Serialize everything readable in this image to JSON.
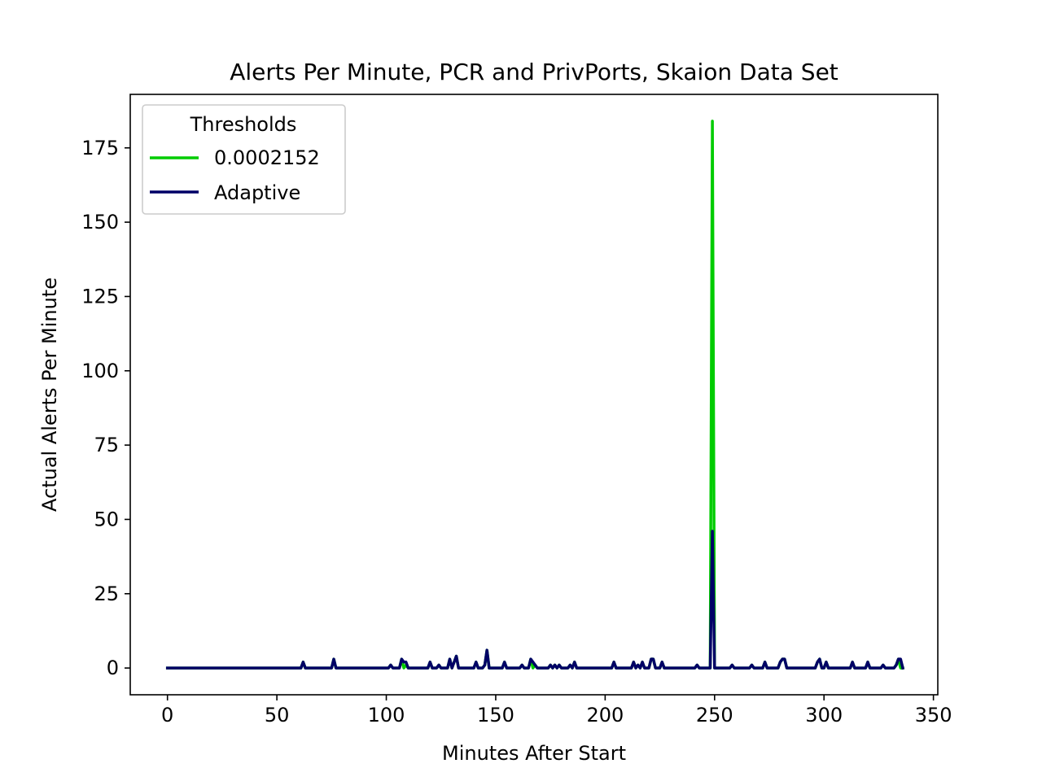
{
  "chart_data": {
    "type": "line",
    "title": "Alerts Per Minute, PCR and PrivPorts, Skaion Data Set",
    "xlabel": "Minutes After Start",
    "ylabel": "Actual Alerts Per Minute",
    "xlim": [
      -17,
      352
    ],
    "ylim": [
      -9,
      193
    ],
    "xticks": [
      0,
      50,
      100,
      150,
      200,
      250,
      300,
      350
    ],
    "yticks": [
      0,
      25,
      50,
      75,
      100,
      125,
      150,
      175
    ],
    "legend": {
      "title": "Thresholds",
      "position": "top-left"
    },
    "grid": false,
    "series": [
      {
        "name": "0.0002152",
        "color": "#00cc00",
        "points": [
          [
            0,
            0
          ],
          [
            61,
            0
          ],
          [
            62,
            2
          ],
          [
            63,
            0
          ],
          [
            75,
            0
          ],
          [
            76,
            3
          ],
          [
            77,
            0
          ],
          [
            101,
            0
          ],
          [
            102,
            1
          ],
          [
            103,
            0
          ],
          [
            106,
            0
          ],
          [
            107,
            3
          ],
          [
            108,
            0
          ],
          [
            109,
            1
          ],
          [
            110,
            0
          ],
          [
            119,
            0
          ],
          [
            120,
            2
          ],
          [
            121,
            0
          ],
          [
            123,
            0
          ],
          [
            124,
            1
          ],
          [
            125,
            0
          ],
          [
            128,
            0
          ],
          [
            129,
            3
          ],
          [
            130,
            0
          ],
          [
            131,
            2
          ],
          [
            132,
            4
          ],
          [
            133,
            0
          ],
          [
            140,
            0
          ],
          [
            141,
            2
          ],
          [
            142,
            0
          ],
          [
            144,
            0
          ],
          [
            145,
            1
          ],
          [
            146,
            6
          ],
          [
            147,
            0
          ],
          [
            153,
            0
          ],
          [
            154,
            2
          ],
          [
            155,
            0
          ],
          [
            161,
            0
          ],
          [
            162,
            1
          ],
          [
            163,
            0
          ],
          [
            165,
            0
          ],
          [
            166,
            3
          ],
          [
            167,
            0
          ],
          [
            168,
            1
          ],
          [
            169,
            0
          ],
          [
            174,
            0
          ],
          [
            175,
            1
          ],
          [
            176,
            0
          ],
          [
            177,
            1
          ],
          [
            178,
            0
          ],
          [
            179,
            1
          ],
          [
            180,
            0
          ],
          [
            183,
            0
          ],
          [
            184,
            1
          ],
          [
            185,
            0
          ],
          [
            186,
            2
          ],
          [
            187,
            0
          ],
          [
            203,
            0
          ],
          [
            204,
            2
          ],
          [
            205,
            0
          ],
          [
            212,
            0
          ],
          [
            213,
            2
          ],
          [
            214,
            0
          ],
          [
            215,
            1
          ],
          [
            216,
            0
          ],
          [
            217,
            2
          ],
          [
            218,
            0
          ],
          [
            220,
            0
          ],
          [
            221,
            3
          ],
          [
            222,
            3
          ],
          [
            223,
            0
          ],
          [
            225,
            0
          ],
          [
            226,
            2
          ],
          [
            227,
            0
          ],
          [
            241,
            0
          ],
          [
            242,
            1
          ],
          [
            243,
            0
          ],
          [
            248,
            0
          ],
          [
            249,
            184
          ],
          [
            250,
            0
          ],
          [
            257,
            0
          ],
          [
            258,
            1
          ],
          [
            259,
            0
          ],
          [
            266,
            0
          ],
          [
            267,
            1
          ],
          [
            268,
            0
          ],
          [
            272,
            0
          ],
          [
            273,
            2
          ],
          [
            274,
            0
          ],
          [
            279,
            0
          ],
          [
            280,
            2
          ],
          [
            281,
            3
          ],
          [
            282,
            3
          ],
          [
            283,
            0
          ],
          [
            296,
            0
          ],
          [
            297,
            2
          ],
          [
            298,
            3
          ],
          [
            299,
            0
          ],
          [
            300,
            0
          ],
          [
            301,
            2
          ],
          [
            302,
            0
          ],
          [
            312,
            0
          ],
          [
            313,
            2
          ],
          [
            314,
            0
          ],
          [
            319,
            0
          ],
          [
            320,
            2
          ],
          [
            321,
            0
          ],
          [
            326,
            0
          ],
          [
            327,
            1
          ],
          [
            328,
            0
          ],
          [
            332,
            0
          ],
          [
            333,
            1
          ],
          [
            334,
            3
          ],
          [
            335,
            0
          ],
          [
            336,
            0
          ]
        ]
      },
      {
        "name": "Adaptive",
        "color": "#000066",
        "points": [
          [
            0,
            0
          ],
          [
            61,
            0
          ],
          [
            62,
            2
          ],
          [
            63,
            0
          ],
          [
            75,
            0
          ],
          [
            76,
            3
          ],
          [
            77,
            0
          ],
          [
            101,
            0
          ],
          [
            102,
            1
          ],
          [
            103,
            0
          ],
          [
            106,
            0
          ],
          [
            107,
            3
          ],
          [
            108,
            2
          ],
          [
            109,
            2
          ],
          [
            110,
            0
          ],
          [
            119,
            0
          ],
          [
            120,
            2
          ],
          [
            121,
            0
          ],
          [
            123,
            0
          ],
          [
            124,
            1
          ],
          [
            125,
            0
          ],
          [
            128,
            0
          ],
          [
            129,
            3
          ],
          [
            130,
            0
          ],
          [
            131,
            2
          ],
          [
            132,
            4
          ],
          [
            133,
            0
          ],
          [
            140,
            0
          ],
          [
            141,
            2
          ],
          [
            142,
            0
          ],
          [
            144,
            0
          ],
          [
            145,
            1
          ],
          [
            146,
            6
          ],
          [
            147,
            0
          ],
          [
            153,
            0
          ],
          [
            154,
            2
          ],
          [
            155,
            0
          ],
          [
            161,
            0
          ],
          [
            162,
            1
          ],
          [
            163,
            0
          ],
          [
            165,
            0
          ],
          [
            166,
            3
          ],
          [
            167,
            2
          ],
          [
            168,
            1
          ],
          [
            169,
            0
          ],
          [
            174,
            0
          ],
          [
            175,
            1
          ],
          [
            176,
            0
          ],
          [
            177,
            1
          ],
          [
            178,
            0
          ],
          [
            179,
            1
          ],
          [
            180,
            0
          ],
          [
            183,
            0
          ],
          [
            184,
            1
          ],
          [
            185,
            0
          ],
          [
            186,
            2
          ],
          [
            187,
            0
          ],
          [
            203,
            0
          ],
          [
            204,
            2
          ],
          [
            205,
            0
          ],
          [
            212,
            0
          ],
          [
            213,
            2
          ],
          [
            214,
            0
          ],
          [
            215,
            1
          ],
          [
            216,
            0
          ],
          [
            217,
            2
          ],
          [
            218,
            0
          ],
          [
            220,
            0
          ],
          [
            221,
            3
          ],
          [
            222,
            3
          ],
          [
            223,
            0
          ],
          [
            225,
            0
          ],
          [
            226,
            2
          ],
          [
            227,
            0
          ],
          [
            241,
            0
          ],
          [
            242,
            1
          ],
          [
            243,
            0
          ],
          [
            248,
            0
          ],
          [
            249,
            46
          ],
          [
            250,
            0
          ],
          [
            257,
            0
          ],
          [
            258,
            1
          ],
          [
            259,
            0
          ],
          [
            266,
            0
          ],
          [
            267,
            1
          ],
          [
            268,
            0
          ],
          [
            272,
            0
          ],
          [
            273,
            2
          ],
          [
            274,
            0
          ],
          [
            279,
            0
          ],
          [
            280,
            2
          ],
          [
            281,
            3
          ],
          [
            282,
            3
          ],
          [
            283,
            0
          ],
          [
            296,
            0
          ],
          [
            297,
            2
          ],
          [
            298,
            3
          ],
          [
            299,
            0
          ],
          [
            300,
            0
          ],
          [
            301,
            2
          ],
          [
            302,
            0
          ],
          [
            312,
            0
          ],
          [
            313,
            2
          ],
          [
            314,
            0
          ],
          [
            319,
            0
          ],
          [
            320,
            2
          ],
          [
            321,
            0
          ],
          [
            326,
            0
          ],
          [
            327,
            1
          ],
          [
            328,
            0
          ],
          [
            332,
            0
          ],
          [
            333,
            1
          ],
          [
            334,
            3
          ],
          [
            335,
            3
          ],
          [
            336,
            0
          ]
        ]
      }
    ]
  }
}
